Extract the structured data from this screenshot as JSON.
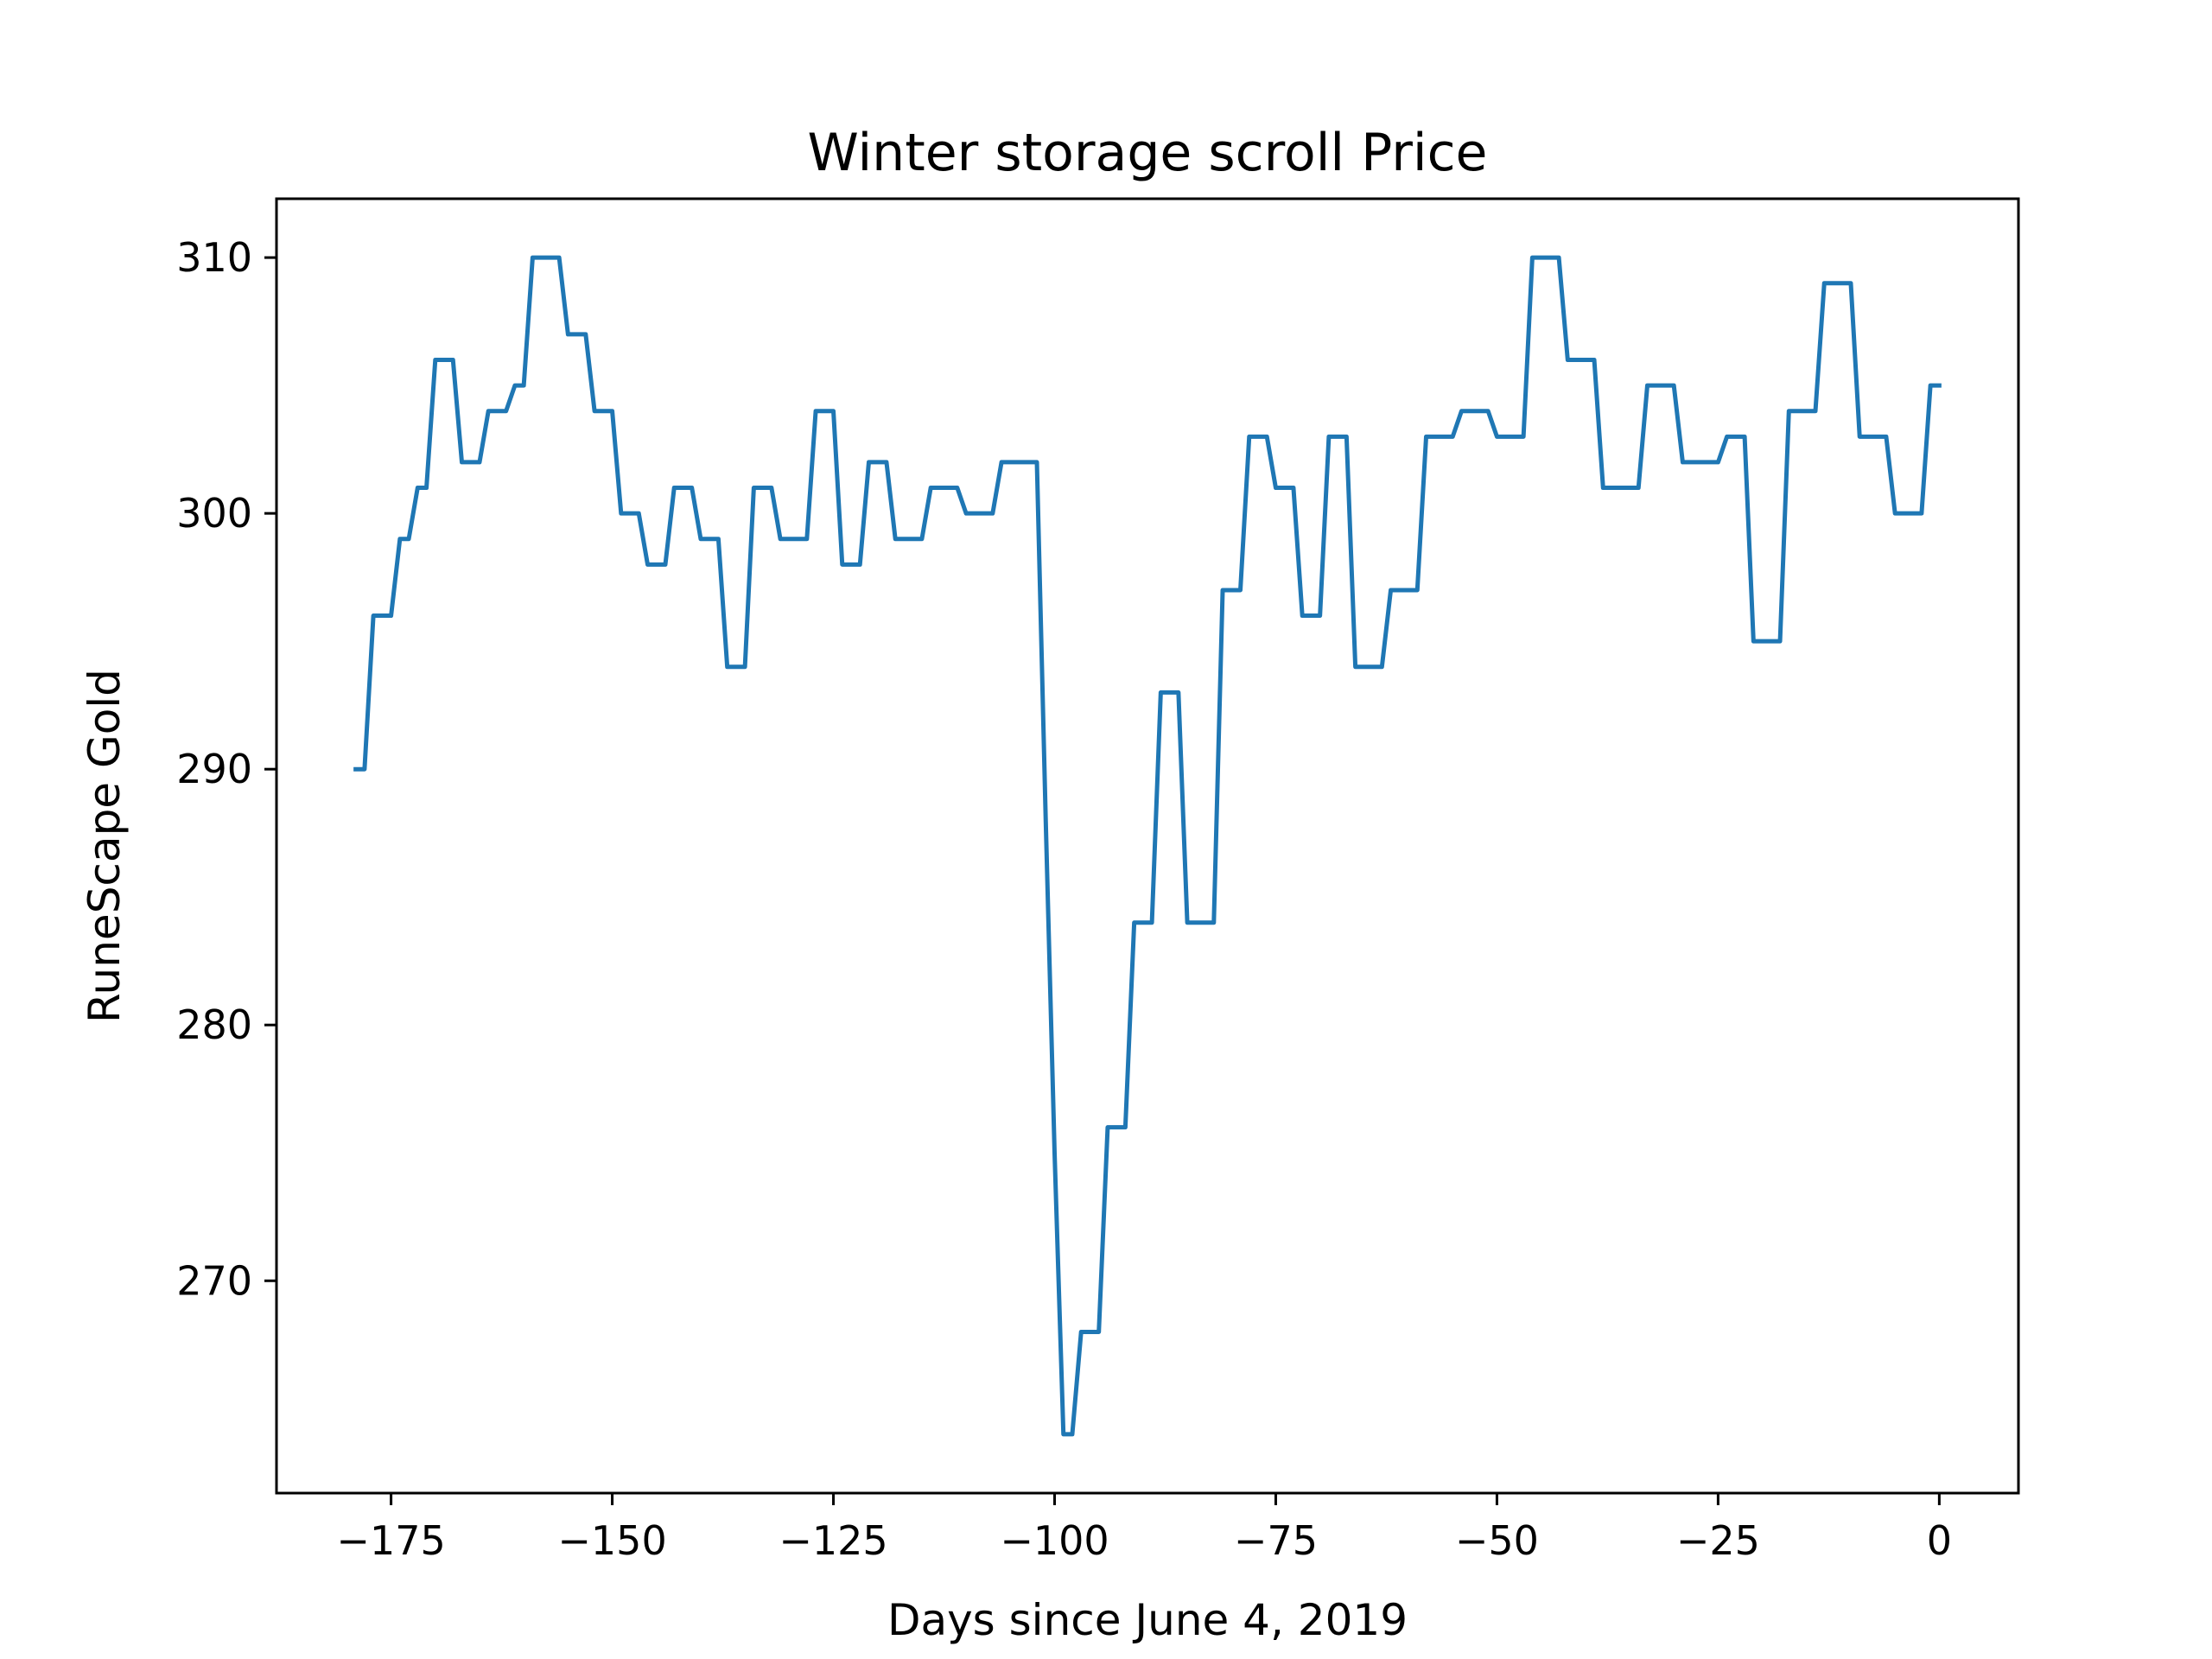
{
  "chart_data": {
    "type": "line",
    "title": "Winter storage scroll Price",
    "xlabel": "Days since June 4, 2019",
    "ylabel": "RuneScape Gold",
    "xlim": [
      -187.95,
      8.95
    ],
    "ylim": [
      261.7,
      312.3
    ],
    "xticks": [
      -175,
      -150,
      -125,
      -100,
      -75,
      -50,
      -25,
      0
    ],
    "xtick_labels": [
      "−175",
      "−150",
      "−125",
      "−100",
      "−75",
      "−50",
      "−25",
      "0"
    ],
    "yticks": [
      270,
      280,
      290,
      300,
      310
    ],
    "ytick_labels": [
      "270",
      "280",
      "290",
      "300",
      "310"
    ],
    "grid": false,
    "legend": "none",
    "series": [
      {
        "color": "#1f77b4",
        "x": [
          -179,
          -178,
          -177,
          -176,
          -175,
          -174,
          -173,
          -172,
          -171,
          -170,
          -169,
          -168,
          -167,
          -166,
          -165,
          -164,
          -163,
          -162,
          -161,
          -160,
          -159,
          -158,
          -157,
          -156,
          -155,
          -154,
          -153,
          -152,
          -151,
          -150,
          -149,
          -148,
          -147,
          -146,
          -145,
          -144,
          -143,
          -142,
          -141,
          -140,
          -139,
          -138,
          -137,
          -136,
          -135,
          -134,
          -133,
          -132,
          -131,
          -130,
          -129,
          -128,
          -127,
          -126,
          -125,
          -124,
          -123,
          -122,
          -121,
          -120,
          -119,
          -118,
          -117,
          -116,
          -115,
          -114,
          -113,
          -112,
          -111,
          -110,
          -109,
          -108,
          -107,
          -106,
          -105,
          -104,
          -103,
          -102,
          -101,
          -100,
          -99,
          -98,
          -97,
          -96,
          -95,
          -94,
          -93,
          -92,
          -91,
          -90,
          -89,
          -88,
          -87,
          -86,
          -85,
          -84,
          -83,
          -82,
          -81,
          -80,
          -79,
          -78,
          -77,
          -76,
          -75,
          -74,
          -73,
          -72,
          -71,
          -70,
          -69,
          -68,
          -67,
          -66,
          -65,
          -64,
          -63,
          -62,
          -61,
          -60,
          -59,
          -58,
          -57,
          -56,
          -55,
          -54,
          -53,
          -52,
          -51,
          -50,
          -49,
          -48,
          -47,
          -46,
          -45,
          -44,
          -43,
          -42,
          -41,
          -40,
          -39,
          -38,
          -37,
          -36,
          -35,
          -34,
          -33,
          -32,
          -31,
          -30,
          -29,
          -28,
          -27,
          -26,
          -25,
          -24,
          -23,
          -22,
          -21,
          -20,
          -19,
          -18,
          -17,
          -16,
          -15,
          -14,
          -13,
          -12,
          -11,
          -10,
          -9,
          -8,
          -7,
          -6,
          -5,
          -4,
          -3,
          -2,
          -1,
          0
        ],
        "y": [
          290,
          290,
          296,
          296,
          296,
          299,
          299,
          301,
          301,
          306,
          306,
          306,
          302,
          302,
          302,
          304,
          304,
          304,
          305,
          305,
          310,
          310,
          310,
          310,
          307,
          307,
          307,
          304,
          304,
          304,
          300,
          300,
          300,
          298,
          298,
          298,
          301,
          301,
          301,
          299,
          299,
          299,
          294,
          294,
          294,
          301,
          301,
          301,
          299,
          299,
          299,
          299,
          304,
          304,
          304,
          298,
          298,
          298,
          302,
          302,
          302,
          299,
          299,
          299,
          299,
          301,
          301,
          301,
          301,
          300,
          300,
          300,
          300,
          302,
          302,
          302,
          302,
          302,
          288,
          275,
          264,
          264,
          268,
          268,
          268,
          276,
          276,
          276,
          284,
          284,
          284,
          293,
          293,
          293,
          284,
          284,
          284,
          284,
          297,
          297,
          297,
          303,
          303,
          303,
          301,
          301,
          301,
          296,
          296,
          296,
          303,
          303,
          303,
          294,
          294,
          294,
          294,
          297,
          297,
          297,
          297,
          303,
          303,
          303,
          303,
          304,
          304,
          304,
          304,
          303,
          303,
          303,
          303,
          310,
          310,
          310,
          310,
          306,
          306,
          306,
          306,
          301,
          301,
          301,
          301,
          301,
          305,
          305,
          305,
          305,
          302,
          302,
          302,
          302,
          302,
          303,
          303,
          303,
          295,
          295,
          295,
          295,
          304,
          304,
          304,
          304,
          309,
          309,
          309,
          309,
          303,
          303,
          303,
          303,
          300,
          300,
          300,
          300,
          305,
          305
        ]
      }
    ]
  }
}
